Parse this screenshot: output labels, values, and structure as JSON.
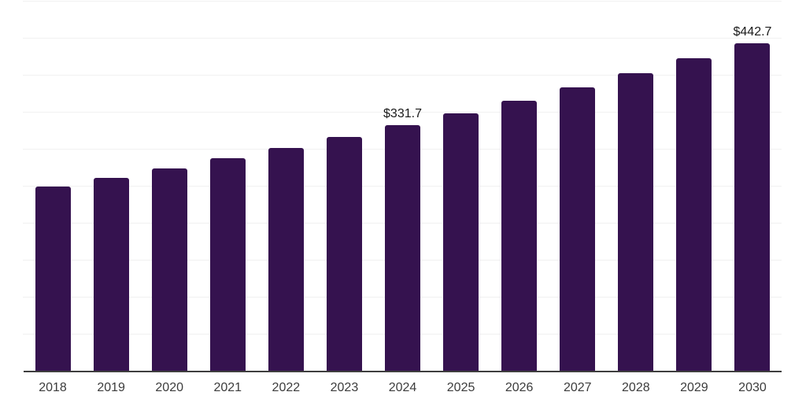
{
  "chart_data": {
    "type": "bar",
    "title": "",
    "xlabel": "",
    "ylabel": "",
    "categories": [
      "2018",
      "2019",
      "2020",
      "2021",
      "2022",
      "2023",
      "2024",
      "2025",
      "2026",
      "2027",
      "2028",
      "2029",
      "2030"
    ],
    "values": [
      248.5,
      260.8,
      273.6,
      287.1,
      301.3,
      316.1,
      331.7,
      348.1,
      365.2,
      383.2,
      402.1,
      421.9,
      442.7
    ],
    "data_labels": [
      "",
      "",
      "",
      "",
      "",
      "",
      "$331.7",
      "",
      "",
      "",
      "",
      "",
      "$442.7"
    ],
    "ylim": [
      0,
      500
    ],
    "gridline_step": 50,
    "grid": "horizontal-only",
    "y_tick_labels_visible": false,
    "legend": "none",
    "colors": {
      "bar": "#35124f",
      "axis_line": "#3f3f3f",
      "gridline": "#f1f1f1",
      "value_label": "#1a1a1a",
      "tick_label": "#3c3c3c",
      "background": "#ffffff"
    }
  }
}
